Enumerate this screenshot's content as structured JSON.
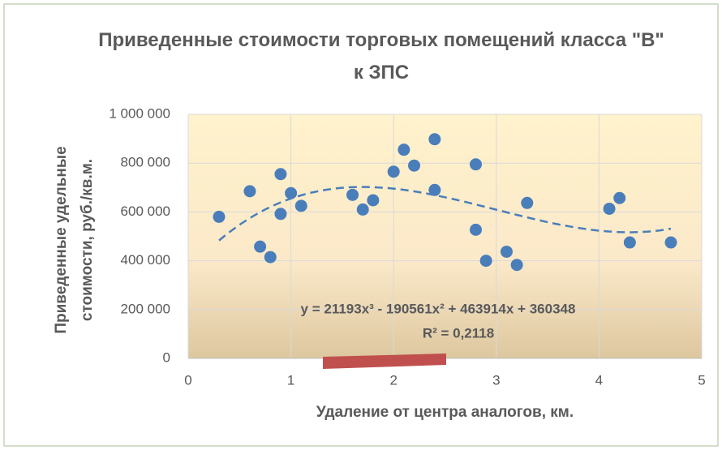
{
  "chart_data": {
    "type": "scatter",
    "title": "Приведенные стоимости торговых помещений класса \"В\" к ЗПС",
    "x_label": "Удаление от центра аналогов, км.",
    "y_label": "Приведенные удельные стоимости, руб./кв.м.",
    "x": [
      0.3,
      0.6,
      0.7,
      0.8,
      0.9,
      0.9,
      1.0,
      1.1,
      1.6,
      1.7,
      1.8,
      2.0,
      2.1,
      2.2,
      2.4,
      2.4,
      2.8,
      2.8,
      2.9,
      3.1,
      3.2,
      3.3,
      4.1,
      4.2,
      4.3,
      4.7
    ],
    "values": [
      580000,
      685000,
      458000,
      415000,
      755000,
      592000,
      677000,
      625000,
      670000,
      610000,
      648000,
      765000,
      855000,
      790000,
      898000,
      690000,
      795000,
      527000,
      400000,
      437000,
      383000,
      637000,
      613000,
      657000,
      475000,
      475000
    ],
    "color": "#4a7ebb",
    "xlim": [
      0,
      5
    ],
    "xticks": [
      0,
      1,
      2,
      3,
      4,
      5
    ],
    "ylim": [
      0,
      1000000
    ],
    "yticks": [
      0,
      {
        "value": 200000,
        "label": "200 000"
      },
      {
        "value": 400000,
        "label": "400 000"
      },
      {
        "value": 600000,
        "label": "600 000"
      },
      {
        "value": 800000,
        "label": "800 000"
      },
      {
        "value": 1000000,
        "label": "1 000 000"
      }
    ],
    "grid": true,
    "trendline": {
      "equation": "y = 21193x³ - 190561x² + 463914x + 360348",
      "r2": "R² = 0,2118",
      "coefficients": [
        21193,
        -190561,
        463914,
        360348
      ]
    }
  }
}
